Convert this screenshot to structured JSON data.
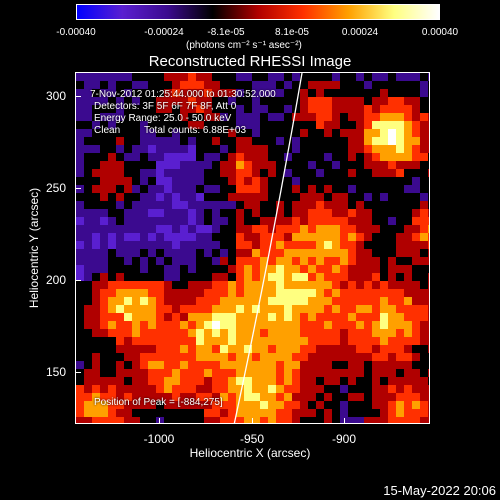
{
  "colorbar": {
    "tick_labels": [
      "-0.00040",
      "-0.00024",
      "-8.1e-05",
      "8.1e-05",
      "0.00024",
      "0.00040"
    ],
    "units": "(photons cm⁻² s⁻¹ asec⁻²)",
    "range": [
      -0.0004,
      0.0004
    ],
    "colors": [
      "#0000ff",
      "#5a1fd0",
      "#3b0a8f",
      "#000000",
      "#b00000",
      "#ff3000",
      "#ffa000",
      "#ffff80",
      "#ffffff"
    ]
  },
  "title": "Reconstructed RHESSI Image",
  "info": {
    "line1": "7-Nov-2012 01:25:44.000 to 01:30:52.000",
    "line2": "Detectors: 3F 5F 6F 7F 8F, Att 0",
    "line3": "Energy Range: 25.0 - 50.0 keV",
    "line4_left": "Clean",
    "line4_right": "Total counts: 6.88E+03",
    "peak": "Position of Peak = [-884,275]"
  },
  "timestamp": "15-May-2022 20:06",
  "chart_data": {
    "type": "heatmap",
    "title": "Reconstructed RHESSI Image",
    "xlabel": "Heliocentric X (arcsec)",
    "ylabel": "Heliocentric Y (arcsec)",
    "xlim": [
      -1050,
      -870
    ],
    "ylim": [
      120,
      312
    ],
    "x_ticks": [
      -1000,
      -950,
      -900
    ],
    "x_tick_labels": [
      "-1000",
      "-950",
      "-900"
    ],
    "y_ticks": [
      150,
      200,
      250,
      300
    ],
    "y_tick_labels": [
      "150",
      "200",
      "250",
      "300"
    ],
    "peak_position": [
      -884,
      275
    ],
    "limb_present": true
  }
}
